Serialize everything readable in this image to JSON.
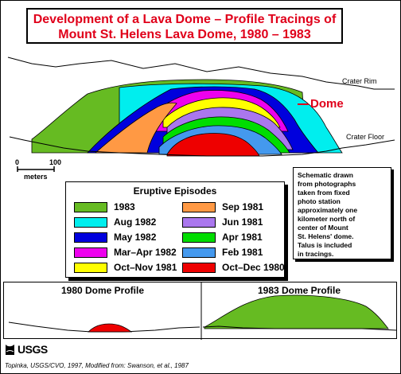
{
  "title": {
    "line1": "Development of a Lava Dome – Profile Tracings of",
    "line2": "Mount St. Helens Lava Dome, 1980 – 1983"
  },
  "labels": {
    "crater_rim": "Crater Rim",
    "crater_floor": "Crater Floor",
    "dome": "Dome",
    "scale_zero": "0",
    "scale_hundred": "100",
    "scale_unit": "meters"
  },
  "note": "Schematic drawn\nfrom photographs\ntaken from fixed\nphoto station\napproximately one\nkilometer north of\ncenter of Mount\nSt. Helens' dome.\nTalus is included\nin tracings.",
  "legend": {
    "title": "Eruptive Episodes",
    "items": [
      {
        "label": "1983",
        "color": "#66bb22"
      },
      {
        "label": "Aug 1982",
        "color": "#00eeee"
      },
      {
        "label": "May 1982",
        "color": "#0000dd"
      },
      {
        "label": "Mar–Apr 1982",
        "color": "#ee00ee"
      },
      {
        "label": "Oct–Nov 1981",
        "color": "#ffff00"
      },
      {
        "label": "Sep 1981",
        "color": "#ff9944"
      },
      {
        "label": "Jun 1981",
        "color": "#aa77ee"
      },
      {
        "label": "Apr 1981",
        "color": "#00dd00"
      },
      {
        "label": "Feb 1981",
        "color": "#4499ee"
      },
      {
        "label": "Oct–Dec 1980",
        "color": "#ee0000"
      }
    ]
  },
  "profiles": {
    "left_title": "1980 Dome Profile",
    "right_title": "1983 Dome Profile"
  },
  "logo_text": "USGS",
  "credit": "Topinka, USGS/CVO, 1997, Modified from: Swanson, et al., 1987"
}
